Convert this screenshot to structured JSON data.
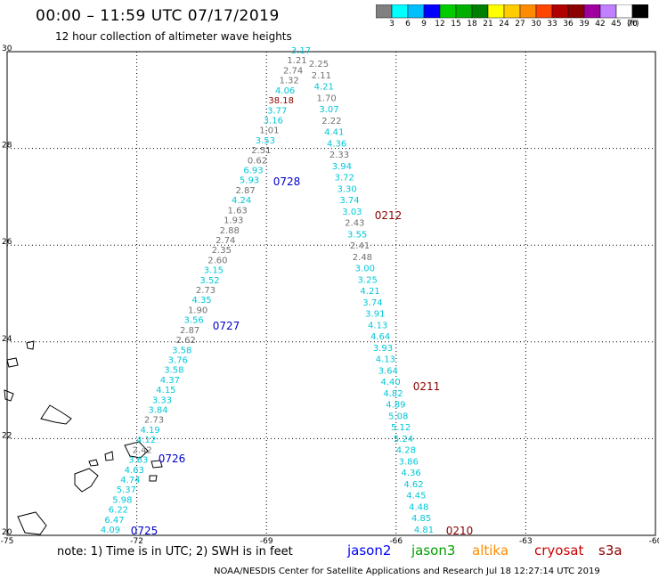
{
  "header": {
    "title": "00:00 – 11:59 UTC 07/17/2019",
    "subtitle": "12 hour collection of altimeter wave heights"
  },
  "colorbar": {
    "unit": "(ft)",
    "labels": [
      "3",
      "6",
      "9",
      "12",
      "15",
      "18",
      "21",
      "24",
      "27",
      "30",
      "33",
      "36",
      "39",
      "42",
      "45",
      "70"
    ],
    "colors": [
      "#808080",
      "#00ffff",
      "#00bfff",
      "#0000ff",
      "#00cc00",
      "#00b000",
      "#008000",
      "#ffff00",
      "#ffcc00",
      "#ff8c00",
      "#ff4500",
      "#b00000",
      "#8b0000",
      "#a000a0",
      "#c080ff",
      "#ffffff",
      "#000000"
    ]
  },
  "axes": {
    "lon_labels": [
      "-75",
      "-72",
      "-69",
      "-66",
      "-63",
      "-60"
    ],
    "lat_labels": [
      "30",
      "28",
      "26",
      "24",
      "22",
      "20"
    ]
  },
  "tracks": {
    "west": [
      "3.17",
      "1.21",
      "2.74",
      "1.32",
      "4.06",
      "38.18",
      "3.77",
      "3.16",
      "1.01",
      "3.53",
      "2.51",
      "0.62",
      "6.93",
      "5.93",
      "2.87",
      "4.24",
      "1.63",
      "1.93",
      "2.88",
      "2.74",
      "2.35",
      "2.60",
      "3.15",
      "3.52",
      "2.73",
      "4.35",
      "1.90",
      "3.56",
      "2.87",
      "2.62",
      "3.58",
      "3.76",
      "3.58",
      "4.37",
      "4.15",
      "3.33",
      "3.84",
      "2.73",
      "4.19",
      "4.12",
      "2.42",
      "3.63",
      "4.63",
      "4.74",
      "5.37",
      "5.98",
      "6.22",
      "6.47",
      "4.09"
    ],
    "east": [
      "2.25",
      "2.11",
      "4.21",
      "1.70",
      "3.07",
      "2.22",
      "4.41",
      "4.36",
      "2.33",
      "3.94",
      "3.72",
      "3.30",
      "3.74",
      "3.03",
      "2.43",
      "3.55",
      "2.41",
      "2.48",
      "3.00",
      "3.25",
      "4.21",
      "3.74",
      "3.91",
      "4.13",
      "4.64",
      "3.93",
      "4.13",
      "3.64",
      "4.40",
      "4.82",
      "4.89",
      "5.08",
      "5.12",
      "5.24",
      "4.28",
      "3.86",
      "4.36",
      "4.62",
      "4.45",
      "4.48",
      "4.85",
      "4.81"
    ]
  },
  "time_labels": [
    "0728",
    "0727",
    "0726",
    "0725",
    "0212",
    "0211",
    "0210"
  ],
  "note": "note: 1) Time is in UTC; 2) SWH is in feet",
  "satellites": [
    "jason2",
    "jason3",
    "altika",
    "cryosat",
    "s3a"
  ],
  "satellite_colors": [
    "#0000ff",
    "#00a000",
    "#ff8c00",
    "#cc0000",
    "#8b0000"
  ],
  "credit": "NOAA/NESDIS Center for Satellite Applications and Research    Jul 18 12:27:14 UTC 2019"
}
